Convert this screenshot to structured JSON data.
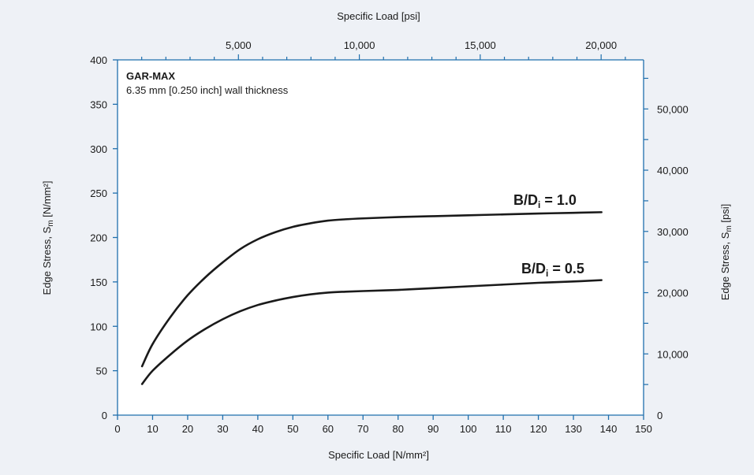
{
  "chart_data": {
    "type": "line",
    "title": "GAR-MAX",
    "subtitle": "6.35 mm [0.250 inch] wall thickness",
    "xlabel": "Specific Load [N/mm²]",
    "x2label": "Specific Load [psi]",
    "ylabel_main": "Edge Stress, S",
    "ylabel_sub": "m",
    "ylabel_unit": " [N/mm²]",
    "y2label_main": "Edge Stress, S",
    "y2label_sub": "m",
    "y2label_unit": " [psi]",
    "xlim": [
      0,
      150
    ],
    "ylim": [
      0,
      400
    ],
    "x2lim_psi": [
      0,
      21755.7
    ],
    "y2lim_psi": [
      0,
      58015.2
    ],
    "x_ticks": [
      "0",
      "10",
      "20",
      "30",
      "40",
      "50",
      "60",
      "70",
      "80",
      "90",
      "100",
      "110",
      "120",
      "130",
      "140",
      "150"
    ],
    "y_ticks": [
      "0",
      "50",
      "100",
      "150",
      "200",
      "250",
      "300",
      "350",
      "400"
    ],
    "x2_ticks": [
      {
        "value": 5000,
        "label": "5,000"
      },
      {
        "value": 10000,
        "label": "10,000"
      },
      {
        "value": 15000,
        "label": "15,000"
      },
      {
        "value": 20000,
        "label": "20,000"
      }
    ],
    "y2_ticks": [
      {
        "value": 0,
        "label": "0"
      },
      {
        "value": 10000,
        "label": "10,000"
      },
      {
        "value": 20000,
        "label": "20,000"
      },
      {
        "value": 30000,
        "label": "30,000"
      },
      {
        "value": 40000,
        "label": "40,000"
      },
      {
        "value": 50000,
        "label": "50,000"
      }
    ],
    "series": [
      {
        "label_main": "B/D",
        "label_sub": "i",
        "label_rest": " = 1.0",
        "x": [
          7,
          10,
          15,
          20,
          25,
          30,
          35,
          40,
          45,
          50,
          55,
          60,
          65,
          70,
          80,
          90,
          100,
          110,
          120,
          130,
          138
        ],
        "y": [
          55,
          80,
          110,
          135,
          155,
          172,
          187,
          198,
          206,
          212,
          216,
          219,
          220.5,
          221.5,
          223,
          224,
          225,
          226,
          227,
          227.8,
          228.5
        ]
      },
      {
        "label_main": "B/D",
        "label_sub": "i",
        "label_rest": " = 0.5",
        "x": [
          7,
          10,
          15,
          20,
          25,
          30,
          35,
          40,
          45,
          50,
          55,
          60,
          65,
          70,
          80,
          90,
          100,
          110,
          120,
          130,
          138
        ],
        "y": [
          35,
          50,
          68,
          84,
          97,
          108,
          117,
          124,
          129,
          133,
          136,
          138,
          139,
          139.7,
          141,
          143,
          145,
          147,
          149,
          150.5,
          152
        ]
      }
    ],
    "colors": {
      "background": "#eef1f6",
      "axis": "#1f6fad",
      "line": "#1a1a1a",
      "plot_area": "#ffffff"
    }
  }
}
